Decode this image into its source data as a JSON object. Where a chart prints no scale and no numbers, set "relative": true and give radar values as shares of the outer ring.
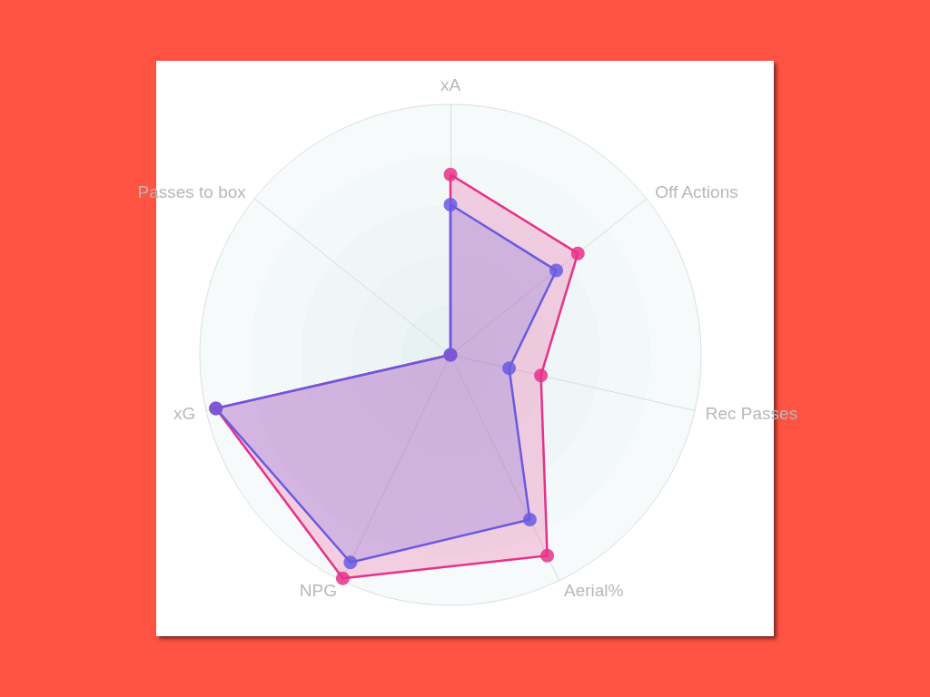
{
  "chart_data": {
    "type": "radar",
    "relative": true,
    "grid": true,
    "marker": "circle",
    "categories": [
      "xA",
      "Off Actions",
      "Rec Passes",
      "Aerial%",
      "NPG",
      "xG",
      "Passes to box"
    ],
    "series": [
      {
        "color": "#e8318a",
        "values": [
          0.72,
          0.65,
          0.37,
          0.89,
          0.99,
          0.96,
          0
        ]
      },
      {
        "color": "#6a5ae0",
        "values": [
          0.6,
          0.54,
          0.24,
          0.73,
          0.92,
          0.96,
          0
        ]
      }
    ]
  }
}
